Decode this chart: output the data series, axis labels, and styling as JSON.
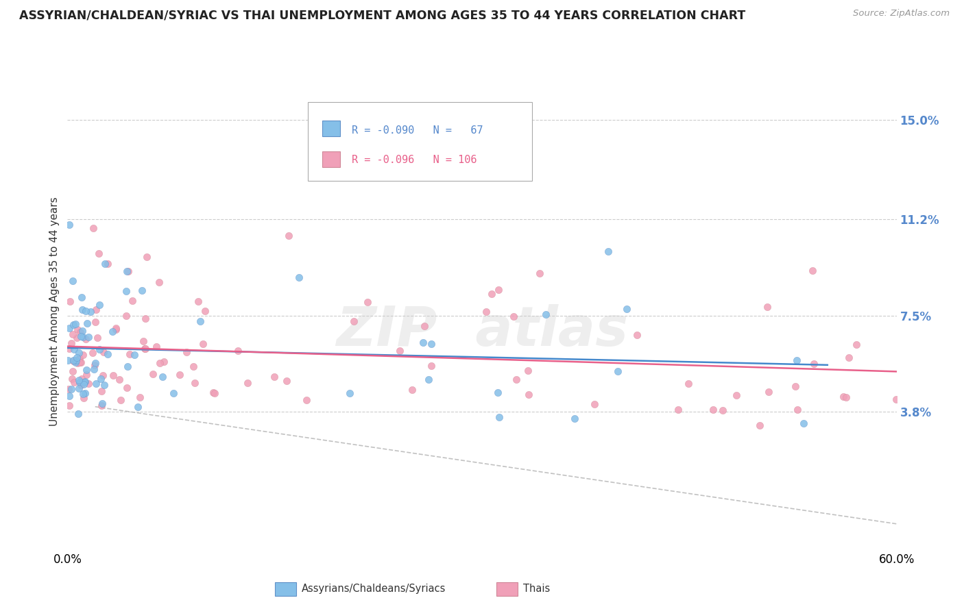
{
  "title": "ASSYRIAN/CHALDEAN/SYRIAC VS THAI UNEMPLOYMENT AMONG AGES 35 TO 44 YEARS CORRELATION CHART",
  "source": "Source: ZipAtlas.com",
  "ylabel": "Unemployment Among Ages 35 to 44 years",
  "xlim": [
    0.0,
    0.6
  ],
  "ylim": [
    -0.015,
    0.168
  ],
  "yticks": [
    0.038,
    0.075,
    0.112,
    0.15
  ],
  "ytick_labels": [
    "3.8%",
    "7.5%",
    "11.2%",
    "15.0%"
  ],
  "xticks": [
    0.0,
    0.6
  ],
  "xtick_labels": [
    "0.0%",
    "60.0%"
  ],
  "series1_color": "#85bfe8",
  "series2_color": "#f0a0b8",
  "trend1_color": "#4488cc",
  "trend2_color": "#e8608a",
  "dash_color": "#bbbbbb",
  "background_color": "#ffffff",
  "grid_color": "#cccccc",
  "ytick_color": "#5588cc",
  "watermark_color": "#eeeeee",
  "title_fontsize": 12.5,
  "label_fontsize": 11,
  "tick_fontsize": 12
}
